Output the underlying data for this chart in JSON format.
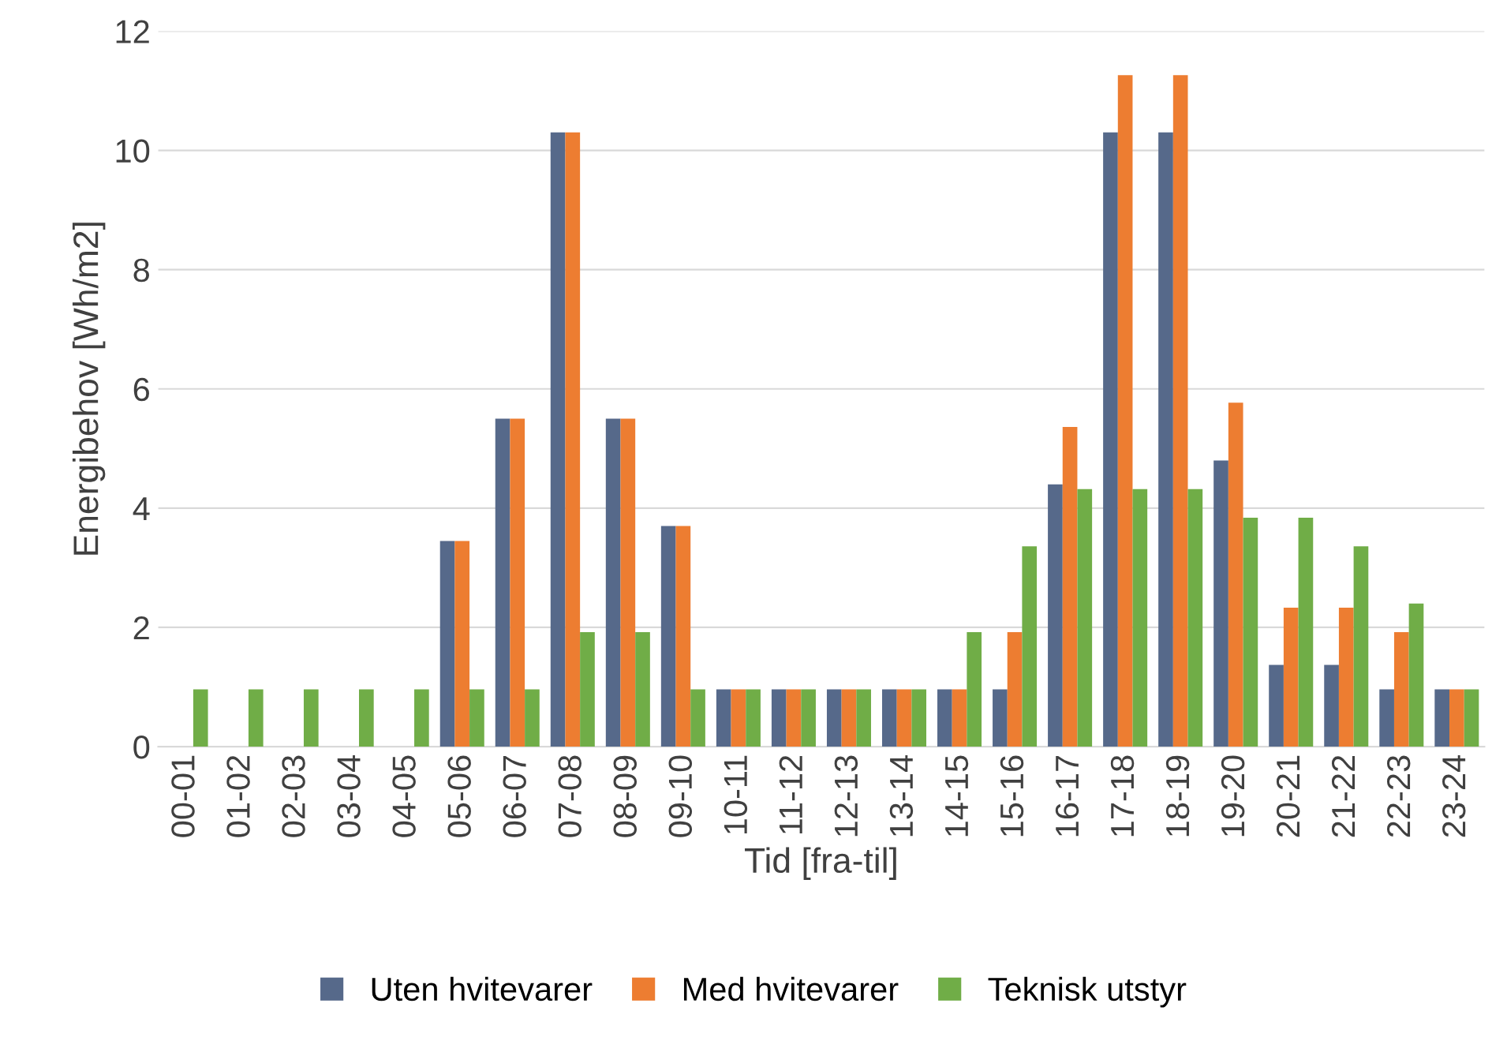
{
  "chart_data": {
    "type": "bar",
    "xlabel": "Tid [fra-til]",
    "ylabel": "Energibehov [Wh/m2]",
    "categories": [
      "00-01",
      "01-02",
      "02-03",
      "03-04",
      "04-05",
      "05-06",
      "06-07",
      "07-08",
      "08-09",
      "09-10",
      "10-11",
      "11-12",
      "12-13",
      "13-14",
      "14-15",
      "15-16",
      "16-17",
      "17-18",
      "18-19",
      "19-20",
      "20-21",
      "21-22",
      "22-23",
      "23-24"
    ],
    "series": [
      {
        "name": "Uten hvitevarer",
        "color": "#56698a",
        "values": [
          0,
          0,
          0,
          0,
          0,
          3.45,
          5.5,
          10.3,
          5.5,
          3.7,
          0.96,
          0.96,
          0.96,
          0.96,
          0.96,
          0.96,
          4.4,
          10.3,
          10.3,
          4.8,
          1.37,
          1.37,
          0.96,
          0.96
        ]
      },
      {
        "name": "Med hvitevarer",
        "color": "#ed7d31",
        "values": [
          0,
          0,
          0,
          0,
          0,
          3.45,
          5.5,
          10.3,
          5.5,
          3.7,
          0.96,
          0.96,
          0.96,
          0.96,
          0.96,
          1.92,
          5.36,
          11.26,
          11.26,
          5.77,
          2.33,
          2.33,
          1.92,
          0.96
        ]
      },
      {
        "name": "Teknisk utstyr",
        "color": "#70ad47",
        "values": [
          0.96,
          0.96,
          0.96,
          0.96,
          0.96,
          0.96,
          0.96,
          1.92,
          1.92,
          0.96,
          0.96,
          0.96,
          0.96,
          0.96,
          1.92,
          3.36,
          4.32,
          4.32,
          4.32,
          3.84,
          3.84,
          3.36,
          2.4,
          0.96
        ]
      }
    ],
    "ylim": [
      0,
      12
    ],
    "yticks": [
      0,
      2,
      4,
      6,
      8,
      10,
      12
    ],
    "grid": "y",
    "legend": "bottom"
  }
}
